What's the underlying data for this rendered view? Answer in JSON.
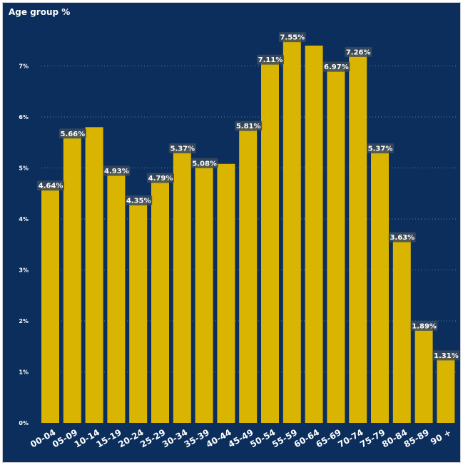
{
  "chart_data": {
    "type": "bar",
    "title": "Age group %",
    "xlabel": "",
    "ylabel": "",
    "categories": [
      "00-04",
      "05-09",
      "10-14",
      "15-19",
      "20-24",
      "25-29",
      "30-34",
      "35-39",
      "40-44",
      "45-49",
      "50-54",
      "55-59",
      "60-64",
      "65-69",
      "70-74",
      "75-79",
      "80-84",
      "85-89",
      "90 +"
    ],
    "values": [
      4.64,
      5.66,
      5.8,
      4.93,
      4.35,
      4.79,
      5.37,
      5.08,
      5.08,
      5.81,
      7.11,
      7.55,
      7.4,
      6.97,
      7.26,
      5.37,
      3.63,
      1.89,
      1.31
    ],
    "data_labels": [
      "4.64%",
      "5.66%",
      "",
      "4.93%",
      "4.35%",
      "4.79%",
      "5.37%",
      "5.08%",
      "",
      "5.81%",
      "7.11%",
      "7.55%",
      "",
      "6.97%",
      "7.26%",
      "5.37%",
      "3.63%",
      "1.89%",
      "1.31%"
    ],
    "ylim": [
      0,
      8
    ],
    "yticks": [
      0,
      1,
      2,
      3,
      4,
      5,
      6,
      7
    ],
    "ytick_labels": [
      "0%",
      "1%",
      "2%",
      "3%",
      "4%",
      "5%",
      "6%",
      "7%"
    ],
    "grid": true,
    "legend": "none",
    "colors": {
      "background": "#0b2e5c",
      "bar": "#d9b400",
      "gridline": "#5f7ea8",
      "label_box": "#3c4a5c",
      "text": "#ffffff"
    }
  }
}
